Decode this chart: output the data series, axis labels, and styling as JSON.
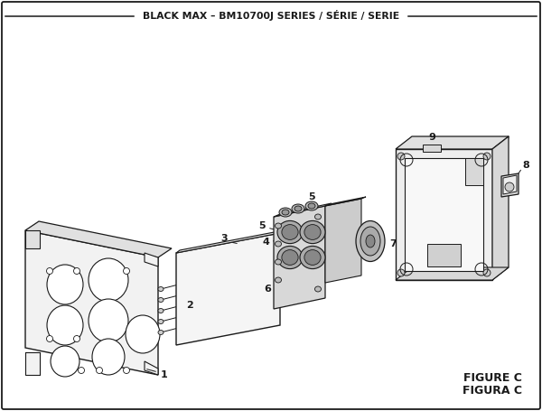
{
  "title": "BLACK MAX – BM10700J SERIES / SÉRIE / SERIE",
  "figure_label": "FIGURE C",
  "figura_label": "FIGURA C",
  "bg_color": "#ffffff",
  "border_color": "#1a1a1a",
  "line_color": "#1a1a1a",
  "gray_light": "#e8e8e8",
  "gray_mid": "#cccccc",
  "gray_dark": "#aaaaaa",
  "figsize": [
    6.0,
    4.55
  ],
  "dpi": 100
}
